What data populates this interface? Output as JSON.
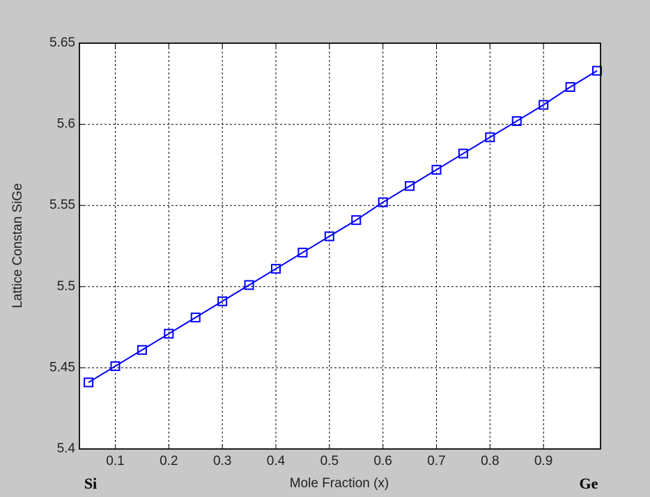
{
  "chart_data": {
    "type": "line",
    "x_label": "Mole Fraction (x)",
    "y_label": "Lattice Constan SiGe",
    "annotations": [
      "Si",
      "Ge"
    ],
    "x": [
      0.05,
      0.1,
      0.15,
      0.2,
      0.25,
      0.3,
      0.35,
      0.4,
      0.45,
      0.5,
      0.55,
      0.6,
      0.65,
      0.7,
      0.75,
      0.8,
      0.85,
      0.9,
      0.95,
      1.0
    ],
    "series": [
      {
        "color": "#0000ff",
        "marker": "square",
        "values": [
          5.441,
          5.451,
          5.461,
          5.471,
          5.481,
          5.491,
          5.501,
          5.511,
          5.521,
          5.531,
          5.541,
          5.552,
          5.562,
          5.572,
          5.582,
          5.592,
          5.602,
          5.612,
          5.623,
          5.633
        ]
      }
    ],
    "xlim": [
      0.033,
      1.0065
    ],
    "ylim": [
      5.4,
      5.65
    ],
    "xticks": [
      0.1,
      0.2,
      0.3,
      0.4,
      0.5,
      0.6,
      0.7,
      0.8,
      0.9
    ],
    "yticks": [
      5.4,
      5.45,
      5.5,
      5.55,
      5.6,
      5.65
    ],
    "grid": true
  }
}
